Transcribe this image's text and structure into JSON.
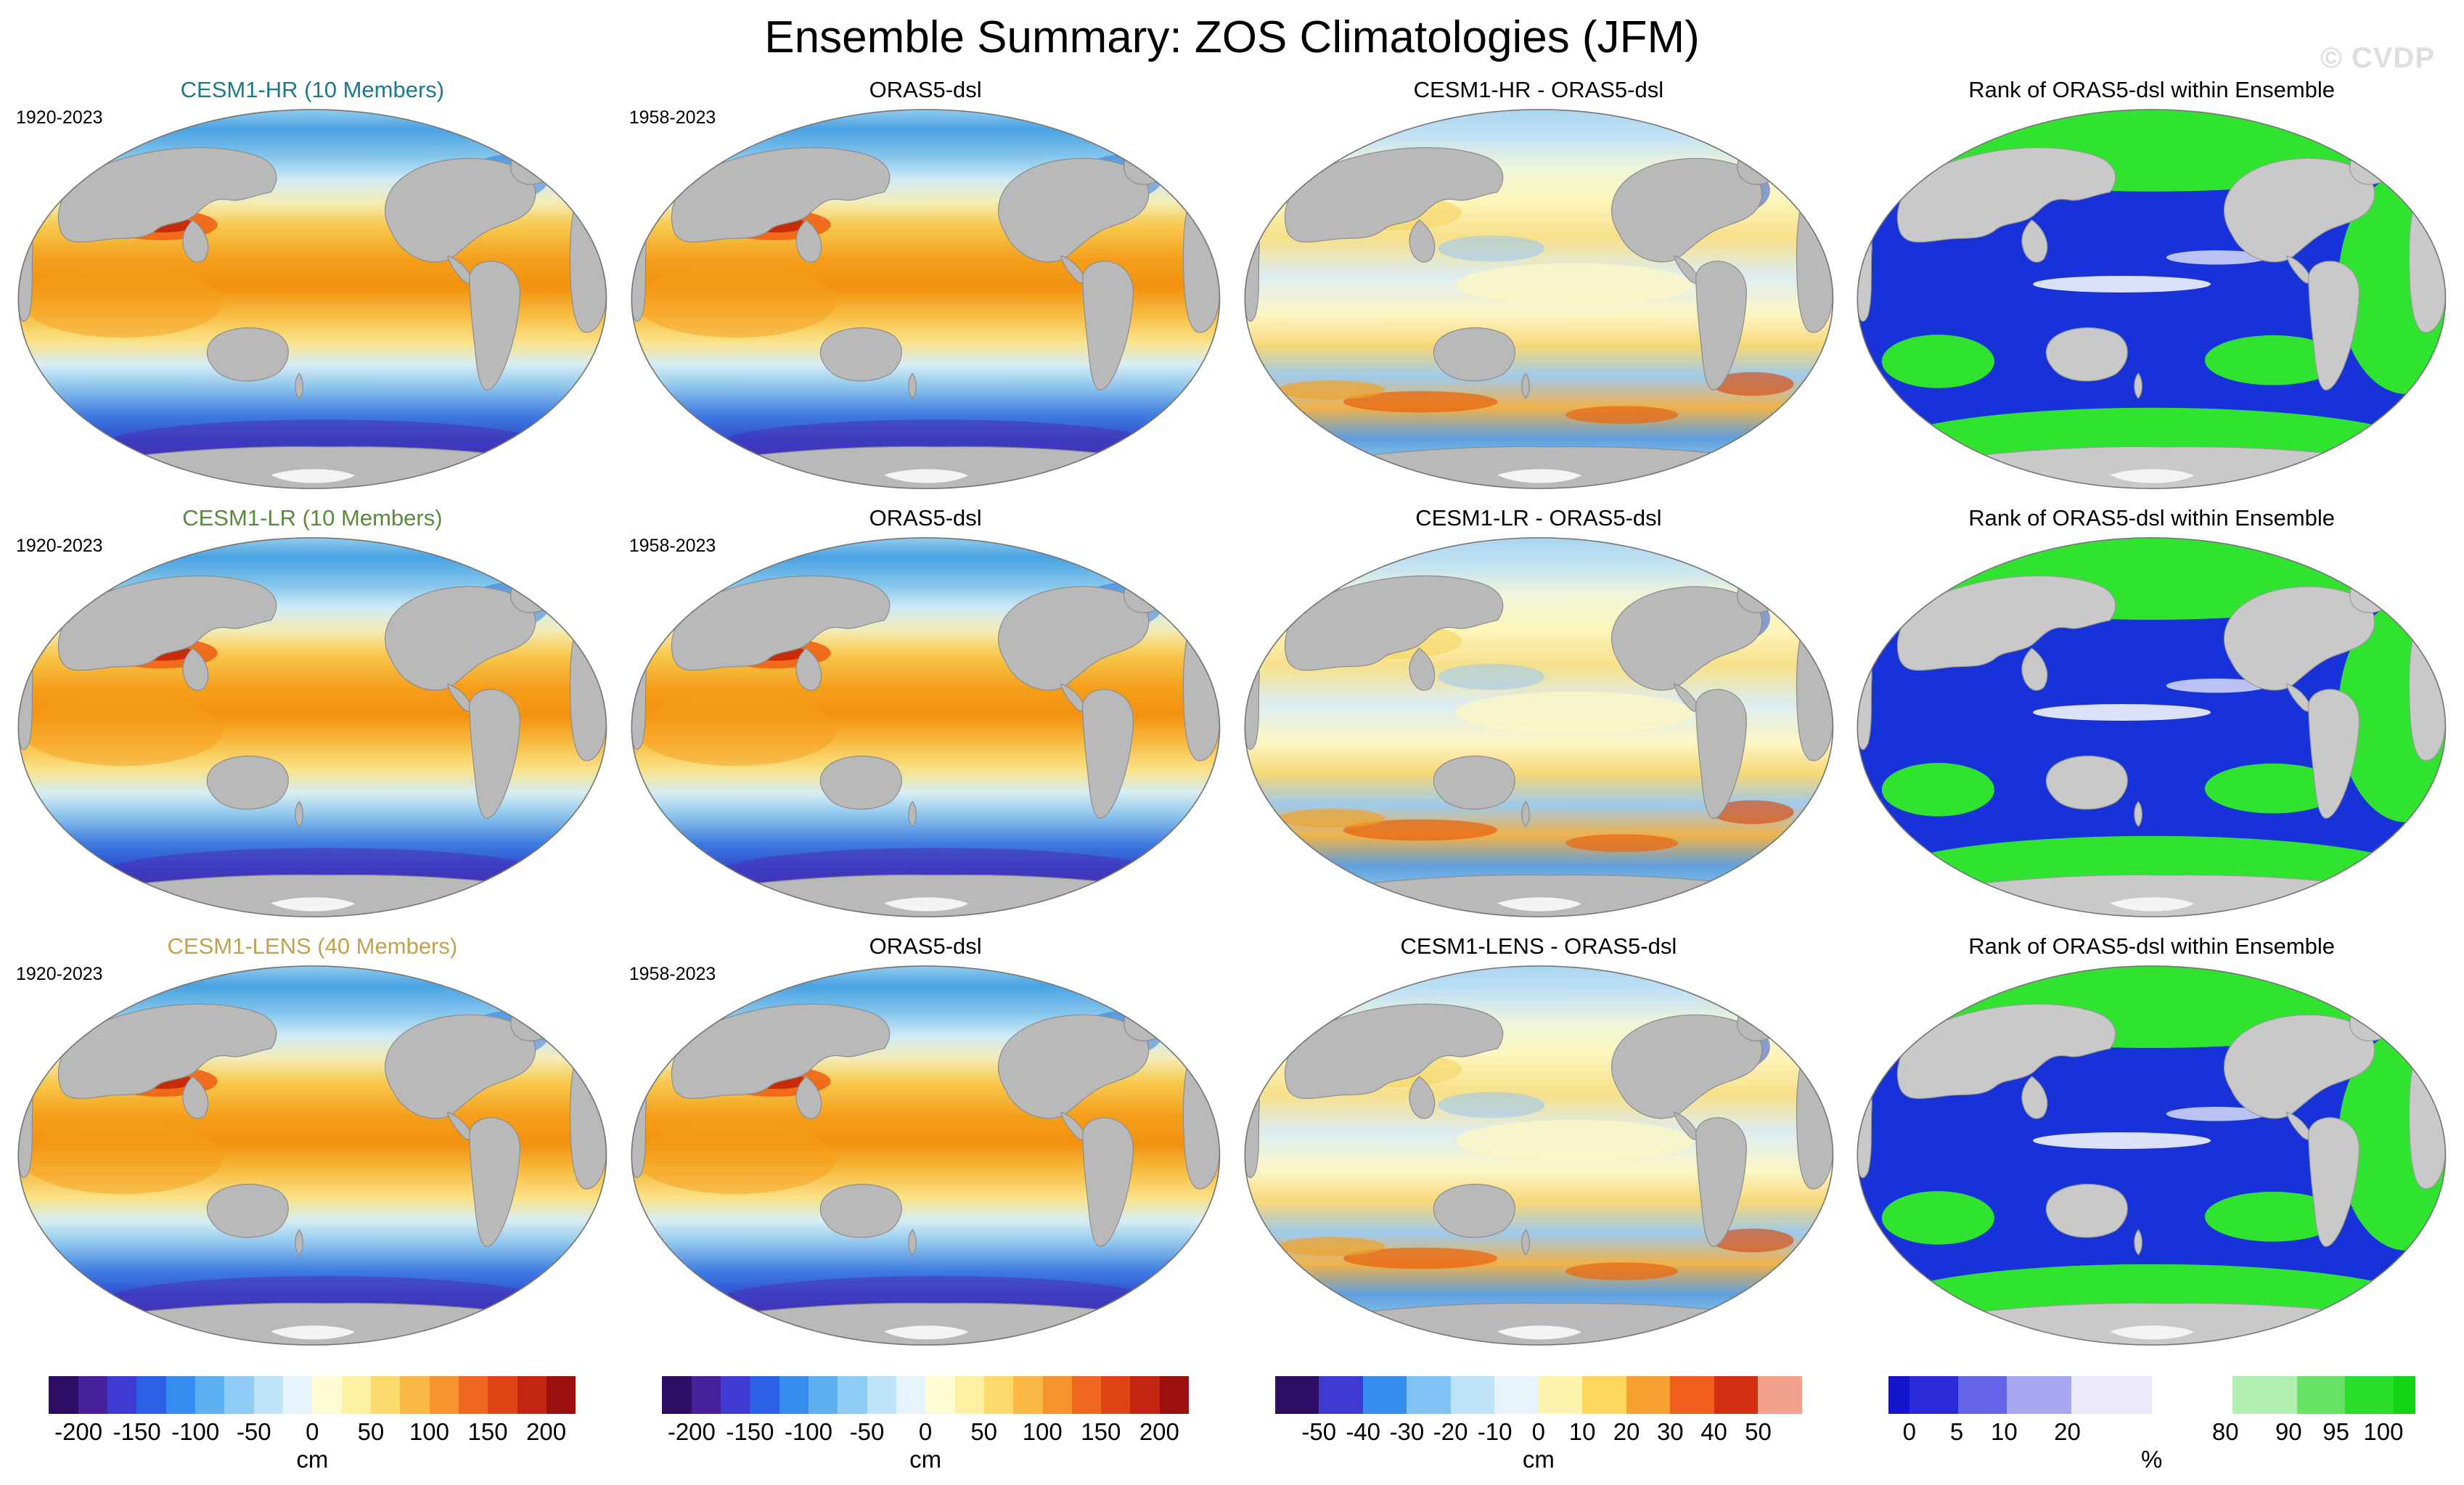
{
  "header": {
    "title": "Ensemble Summary: ZOS Climatologies (JFM)",
    "watermark": "© CVDP"
  },
  "rows": [
    {
      "panels": [
        {
          "title": "CESM1-HR (10 Members)",
          "title_color": "#1a7a8f",
          "years": "1920-2023"
        },
        {
          "title": "ORAS5-dsl",
          "title_color": "#000000",
          "years": "1958-2023"
        },
        {
          "title": "CESM1-HR - ORAS5-dsl",
          "title_color": "#000000",
          "years": ""
        },
        {
          "title": "Rank of ORAS5-dsl within Ensemble",
          "title_color": "#000000",
          "years": ""
        }
      ]
    },
    {
      "panels": [
        {
          "title": "CESM1-LR (10 Members)",
          "title_color": "#5a8a3c",
          "years": "1920-2023"
        },
        {
          "title": "ORAS5-dsl",
          "title_color": "#000000",
          "years": "1958-2023"
        },
        {
          "title": "CESM1-LR - ORAS5-dsl",
          "title_color": "#000000",
          "years": ""
        },
        {
          "title": "Rank of ORAS5-dsl within Ensemble",
          "title_color": "#000000",
          "years": ""
        }
      ]
    },
    {
      "panels": [
        {
          "title": "CESM1-LENS (40 Members)",
          "title_color": "#c2a24e",
          "years": "1920-2023"
        },
        {
          "title": "ORAS5-dsl",
          "title_color": "#000000",
          "years": "1958-2023"
        },
        {
          "title": "CESM1-LENS - ORAS5-dsl",
          "title_color": "#000000",
          "years": ""
        },
        {
          "title": "Rank of ORAS5-dsl within Ensemble",
          "title_color": "#000000",
          "years": ""
        }
      ]
    }
  ],
  "colorbars": [
    {
      "unit": "cm",
      "ticks": [
        "-200",
        "-150",
        "-100",
        "-50",
        "0",
        "50",
        "100",
        "150",
        "200"
      ],
      "tick_positions": [
        5.6,
        16.7,
        27.8,
        38.9,
        50,
        61.1,
        72.2,
        83.3,
        94.4
      ],
      "segments": [
        "#2d0d66",
        "#47209e",
        "#3d3bd2",
        "#2b5fe6",
        "#338cee",
        "#5fb0f2",
        "#8fcdf6",
        "#bfe3f9",
        "#e4f3fc",
        "#fdfbd4",
        "#fdf0a2",
        "#fdda6c",
        "#fcb844",
        "#f7922c",
        "#ef671f",
        "#e04416",
        "#c32612",
        "#9c1010"
      ]
    },
    {
      "unit": "cm",
      "ticks": [
        "-200",
        "-150",
        "-100",
        "-50",
        "0",
        "50",
        "100",
        "150",
        "200"
      ],
      "tick_positions": [
        5.6,
        16.7,
        27.8,
        38.9,
        50,
        61.1,
        72.2,
        83.3,
        94.4
      ],
      "segments": [
        "#2d0d66",
        "#47209e",
        "#3d3bd2",
        "#2b5fe6",
        "#338cee",
        "#5fb0f2",
        "#8fcdf6",
        "#bfe3f9",
        "#e4f3fc",
        "#fdfbd4",
        "#fdf0a2",
        "#fdda6c",
        "#fcb844",
        "#f7922c",
        "#ef671f",
        "#e04416",
        "#c32612",
        "#9c1010"
      ]
    },
    {
      "unit": "cm",
      "ticks": [
        "-50",
        "-40",
        "-30",
        "-20",
        "-10",
        "0",
        "10",
        "20",
        "30",
        "40",
        "50"
      ],
      "tick_positions": [
        8.3,
        16.7,
        25,
        33.3,
        41.7,
        50,
        58.3,
        66.7,
        75,
        83.3,
        91.7
      ],
      "segments": [
        "#2d0d66",
        "#3d3bd2",
        "#338cee",
        "#7fc2f4",
        "#bfe3f9",
        "#e8f4fc",
        "#fdf4b0",
        "#fdd75e",
        "#f9a032",
        "#ef5e1c",
        "#d32f12",
        "#f4a28e"
      ]
    },
    {
      "unit": "%",
      "ticks": [
        "0",
        "5",
        "10",
        "20",
        "80",
        "90",
        "95",
        "100"
      ],
      "tick_positions": [
        4,
        13,
        22,
        34,
        64,
        76,
        85,
        94
      ],
      "segments": [
        {
          "c": "#1414cc",
          "w": 4
        },
        {
          "c": "#2a2ad8",
          "w": 9
        },
        {
          "c": "#6464e8",
          "w": 9
        },
        {
          "c": "#a8a8f0",
          "w": 12
        },
        {
          "c": "#e9e9fb",
          "w": 15
        },
        {
          "c": "#ffffff",
          "w": 15
        },
        {
          "c": "#b2f0b2",
          "w": 12
        },
        {
          "c": "#66e266",
          "w": 9
        },
        {
          "c": "#2ade2a",
          "w": 9
        },
        {
          "c": "#12d412",
          "w": 4
        }
      ]
    }
  ],
  "chart_data": {
    "type": "heatmap",
    "figure_title": "Ensemble Summary: ZOS Climatologies (JFM)",
    "variable": "ZOS (dynamic sea level) climatology, JFM season, global ocean maps",
    "projection": "Pacific-centered Robinson-style ellipse, gray continents",
    "legend_position": "bottom",
    "panels": [
      {
        "row": 1,
        "col": 1,
        "title": "CESM1-HR (10 Members)",
        "period": "1920-2023",
        "units": "cm",
        "value_range": [
          -200,
          200
        ]
      },
      {
        "row": 1,
        "col": 2,
        "title": "ORAS5-dsl",
        "period": "1958-2023",
        "units": "cm",
        "value_range": [
          -200,
          200
        ]
      },
      {
        "row": 1,
        "col": 3,
        "title": "CESM1-HR - ORAS5-dsl",
        "units": "cm",
        "value_range": [
          -50,
          50
        ]
      },
      {
        "row": 1,
        "col": 4,
        "title": "Rank of ORAS5-dsl within Ensemble",
        "units": "%",
        "value_range": [
          0,
          100
        ]
      },
      {
        "row": 2,
        "col": 1,
        "title": "CESM1-LR (10 Members)",
        "period": "1920-2023",
        "units": "cm",
        "value_range": [
          -200,
          200
        ]
      },
      {
        "row": 2,
        "col": 2,
        "title": "ORAS5-dsl",
        "period": "1958-2023",
        "units": "cm",
        "value_range": [
          -200,
          200
        ]
      },
      {
        "row": 2,
        "col": 3,
        "title": "CESM1-LR - ORAS5-dsl",
        "units": "cm",
        "value_range": [
          -50,
          50
        ]
      },
      {
        "row": 2,
        "col": 4,
        "title": "Rank of ORAS5-dsl within Ensemble",
        "units": "%",
        "value_range": [
          0,
          100
        ]
      },
      {
        "row": 3,
        "col": 1,
        "title": "CESM1-LENS (40 Members)",
        "period": "1920-2023",
        "units": "cm",
        "value_range": [
          -200,
          200
        ]
      },
      {
        "row": 3,
        "col": 2,
        "title": "ORAS5-dsl",
        "period": "1958-2023",
        "units": "cm",
        "value_range": [
          -200,
          200
        ]
      },
      {
        "row": 3,
        "col": 3,
        "title": "CESM1-LENS - ORAS5-dsl",
        "units": "cm",
        "value_range": [
          -50,
          50
        ]
      },
      {
        "row": 3,
        "col": 4,
        "title": "Rank of ORAS5-dsl within Ensemble",
        "units": "%",
        "value_range": [
          0,
          100
        ]
      }
    ],
    "colorbar_ticks": {
      "climatology_cm": [
        -200,
        -150,
        -100,
        -50,
        0,
        50,
        100,
        150,
        200
      ],
      "difference_cm": [
        -50,
        -40,
        -30,
        -20,
        -10,
        0,
        10,
        20,
        30,
        40,
        50
      ],
      "rank_percent": [
        0,
        5,
        10,
        20,
        80,
        90,
        95,
        100
      ]
    }
  }
}
